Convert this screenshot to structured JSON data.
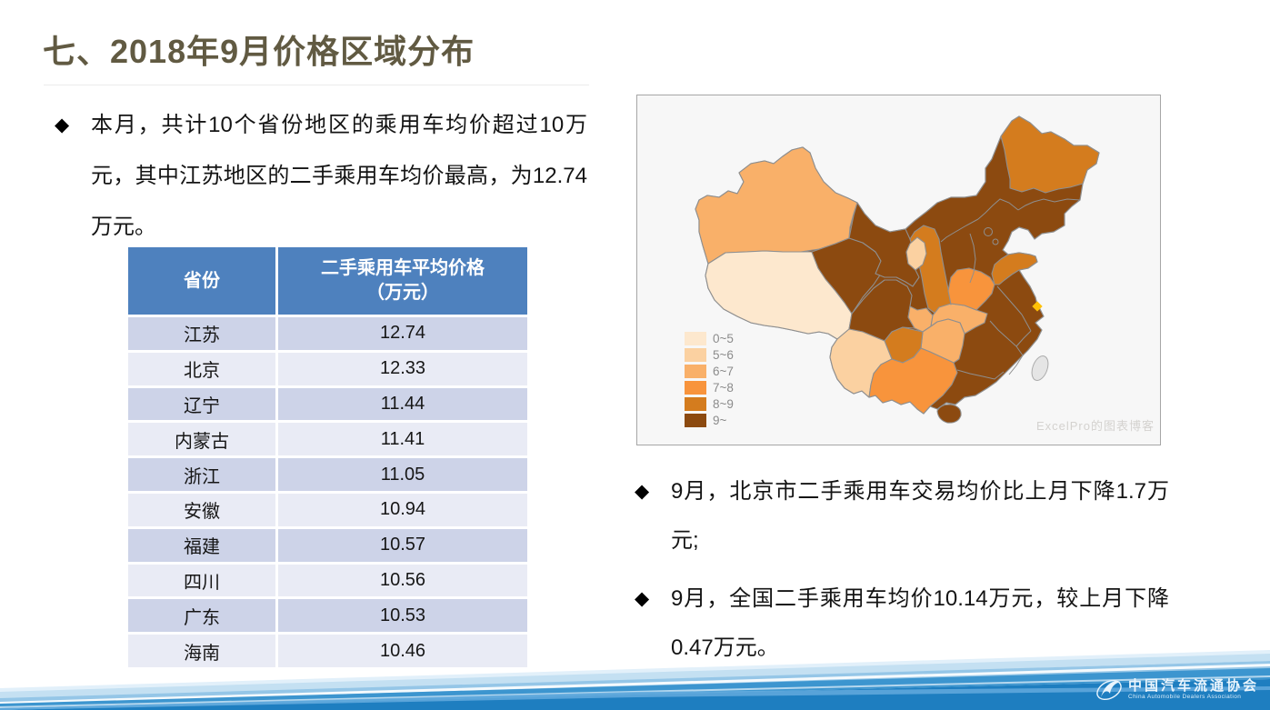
{
  "slide": {
    "title": "七、2018年9月价格区域分布",
    "bullet_glyph": "◆",
    "left_bullet": "本月，共计10个省份地区的乘用车均价超过10万元，其中江苏地区的二手乘用车均价最高，为12.74万元。",
    "right_bullets": [
      "9月，北京市二手乘用车交易均价比上月下降1.7万元;",
      "9月，全国二手乘用车均价10.14万元，较上月下降0.47万元。"
    ]
  },
  "table": {
    "header": {
      "province": "省份",
      "price_line1": "二手乘用车平均价格",
      "price_line2": "（万元）"
    },
    "header_bg": "#4E81BE",
    "row_colors": [
      "#CDD3E8",
      "#E9EBF5"
    ],
    "rows": [
      [
        "江苏",
        "12.74"
      ],
      [
        "北京",
        "12.33"
      ],
      [
        "辽宁",
        "11.44"
      ],
      [
        "内蒙古",
        "11.41"
      ],
      [
        "浙江",
        "11.05"
      ],
      [
        "安徽",
        "10.94"
      ],
      [
        "福建",
        "10.57"
      ],
      [
        "四川",
        "10.56"
      ],
      [
        "广东",
        "10.53"
      ],
      [
        "海南",
        "10.46"
      ]
    ]
  },
  "chart_data": {
    "type": "choropleth",
    "unit": "万元",
    "legend_position": "bottom-left",
    "palette": [
      "#FDE8CE",
      "#FBD1A1",
      "#F9B069",
      "#F8943C",
      "#D47C1E",
      "#8C4A10"
    ],
    "no_data_color": "#E5E5E5",
    "marker_color": "#FFC107",
    "legend": [
      {
        "label": "0~5",
        "color": "#FDE8CE"
      },
      {
        "label": "5~6",
        "color": "#FBD1A1"
      },
      {
        "label": "6~7",
        "color": "#F9B069"
      },
      {
        "label": "7~8",
        "color": "#F8943C"
      },
      {
        "label": "8~9",
        "color": "#D47C1E"
      },
      {
        "label": "9~",
        "color": "#8C4A10"
      }
    ],
    "regions": [
      {
        "name": "新疆",
        "bucket": "6~7"
      },
      {
        "name": "西藏",
        "bucket": "0~5"
      },
      {
        "name": "青海",
        "bucket": "9~"
      },
      {
        "name": "甘肃",
        "bucket": "9~"
      },
      {
        "name": "内蒙古",
        "bucket": "9~"
      },
      {
        "name": "宁夏",
        "bucket": "5~6"
      },
      {
        "name": "陕西",
        "bucket": "8~9"
      },
      {
        "name": "山西",
        "bucket": "9~"
      },
      {
        "name": "河北",
        "bucket": "9~"
      },
      {
        "name": "北京",
        "bucket": "9~"
      },
      {
        "name": "天津",
        "bucket": "9~"
      },
      {
        "name": "山东",
        "bucket": "8~9"
      },
      {
        "name": "河南",
        "bucket": "7~8"
      },
      {
        "name": "四川",
        "bucket": "9~"
      },
      {
        "name": "重庆",
        "bucket": "6~7"
      },
      {
        "name": "贵州",
        "bucket": "8~9"
      },
      {
        "name": "云南",
        "bucket": "5~6"
      },
      {
        "name": "湖北",
        "bucket": "6~7"
      },
      {
        "name": "湖南",
        "bucket": "6~7"
      },
      {
        "name": "广西",
        "bucket": "7~8"
      },
      {
        "name": "广东",
        "bucket": "9~"
      },
      {
        "name": "海南",
        "bucket": "9~"
      },
      {
        "name": "江苏",
        "bucket": "9~"
      },
      {
        "name": "上海",
        "bucket": "9~"
      },
      {
        "name": "安徽",
        "bucket": "9~"
      },
      {
        "name": "浙江",
        "bucket": "9~"
      },
      {
        "name": "江西",
        "bucket": "9~"
      },
      {
        "name": "福建",
        "bucket": "9~"
      },
      {
        "name": "黑龙江",
        "bucket": "8~9"
      },
      {
        "name": "吉林",
        "bucket": "9~"
      },
      {
        "name": "辽宁",
        "bucket": "9~"
      },
      {
        "name": "台湾",
        "bucket": "no-data"
      }
    ],
    "watermark": "ExcelPro的图表博客"
  },
  "footer": {
    "org_cn": "中国汽车流通协会",
    "org_en": "China Automobile Dealers Association"
  }
}
